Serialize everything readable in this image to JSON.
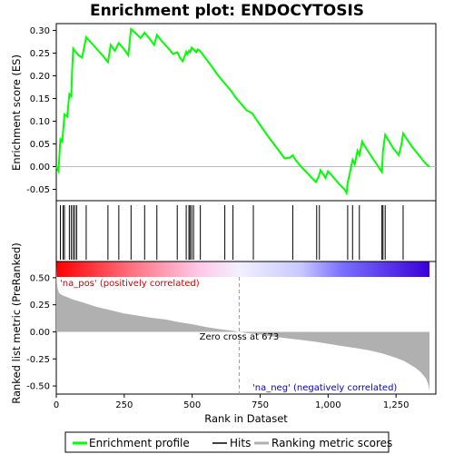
{
  "chart_data": [
    {
      "type": "line",
      "title": "Enrichment plot: ENDOCYTOSIS",
      "ylabel": "Enrichment score (ES)",
      "xlim": [
        0,
        1400
      ],
      "ylim": [
        -0.075,
        0.315
      ],
      "yticks": [
        "0.30",
        "0.25",
        "0.20",
        "0.15",
        "0.10",
        "0.05",
        "0.00",
        "-0.05"
      ],
      "ytick_values": [
        0.3,
        0.25,
        0.2,
        0.15,
        0.1,
        0.05,
        0.0,
        -0.05
      ],
      "color": "#00ff00",
      "series": [
        {
          "name": "Enrichment profile",
          "x": [
            0,
            8,
            15,
            22,
            30,
            40,
            48,
            55,
            58,
            62,
            68,
            75,
            82,
            95,
            110,
            125,
            140,
            155,
            170,
            190,
            200,
            215,
            230,
            250,
            265,
            275,
            290,
            310,
            325,
            345,
            360,
            370,
            390,
            410,
            430,
            445,
            455,
            465,
            478,
            482,
            488,
            492,
            498,
            505,
            515,
            520,
            530,
            545,
            560,
            575,
            590,
            610,
            630,
            645,
            660,
            680,
            700,
            720,
            740,
            760,
            780,
            800,
            820,
            840,
            860,
            870,
            880,
            900,
            920,
            940,
            955,
            965,
            972,
            980,
            990,
            1000,
            1020,
            1040,
            1060,
            1068,
            1072,
            1078,
            1085,
            1090,
            1098,
            1108,
            1115,
            1125,
            1140,
            1160,
            1180,
            1198,
            1202,
            1210,
            1225,
            1240,
            1260,
            1270,
            1276,
            1290,
            1310,
            1330,
            1350,
            1365,
            1373
          ],
          "y": [
            0.0,
            -0.01,
            0.06,
            0.055,
            0.115,
            0.11,
            0.16,
            0.155,
            0.21,
            0.26,
            0.255,
            0.25,
            0.245,
            0.24,
            0.285,
            0.275,
            0.265,
            0.255,
            0.245,
            0.23,
            0.268,
            0.255,
            0.272,
            0.258,
            0.245,
            0.303,
            0.295,
            0.283,
            0.295,
            0.28,
            0.268,
            0.29,
            0.275,
            0.262,
            0.248,
            0.252,
            0.24,
            0.232,
            0.253,
            0.248,
            0.255,
            0.252,
            0.262,
            0.258,
            0.252,
            0.258,
            0.254,
            0.242,
            0.23,
            0.218,
            0.205,
            0.19,
            0.176,
            0.165,
            0.152,
            0.138,
            0.124,
            0.118,
            0.1,
            0.083,
            0.066,
            0.05,
            0.034,
            0.018,
            0.02,
            0.025,
            0.015,
            0.0,
            -0.012,
            -0.025,
            -0.034,
            -0.022,
            -0.008,
            -0.015,
            -0.025,
            -0.01,
            -0.024,
            -0.038,
            -0.05,
            -0.058,
            -0.035,
            -0.02,
            0.0,
            0.015,
            0.005,
            0.035,
            0.025,
            0.055,
            0.04,
            0.022,
            0.004,
            -0.012,
            0.035,
            0.07,
            0.055,
            0.04,
            0.025,
            0.05,
            0.073,
            0.06,
            0.043,
            0.028,
            0.013,
            0.003,
            0.0
          ]
        }
      ]
    },
    {
      "type": "hits",
      "name": "Hits",
      "x": [
        15,
        25,
        30,
        48,
        55,
        62,
        68,
        75,
        110,
        190,
        230,
        275,
        325,
        370,
        445,
        478,
        488,
        492,
        498,
        505,
        530,
        620,
        650,
        725,
        870,
        958,
        968,
        1072,
        1090,
        1115,
        1198,
        1202,
        1210,
        1276
      ],
      "color": "#000000"
    },
    {
      "type": "heatmap",
      "name": "rank colorbar",
      "stops": [
        {
          "x": 0,
          "color": "#ff0000"
        },
        {
          "x": 300,
          "color": "#ff7a8a"
        },
        {
          "x": 520,
          "color": "#ffc6e8"
        },
        {
          "x": 673,
          "color": "#f2f0ff"
        },
        {
          "x": 900,
          "color": "#c8c8ff"
        },
        {
          "x": 1050,
          "color": "#7a70ff"
        },
        {
          "x": 1373,
          "color": "#3a00d8"
        }
      ]
    },
    {
      "type": "area",
      "ylabel": "Ranked list metric (PreRanked)",
      "xlabel": "Rank in Dataset",
      "ylim": [
        -0.575,
        0.65
      ],
      "yticks": [
        "0.50",
        "0.25",
        "0.00",
        "-0.25",
        "-0.50"
      ],
      "ytick_values": [
        0.5,
        0.25,
        0.0,
        -0.25,
        -0.5
      ],
      "xticks": [
        "0",
        "250",
        "500",
        "750",
        "1,000",
        "1,250"
      ],
      "xtick_values": [
        0,
        250,
        500,
        750,
        1000,
        1250
      ],
      "color": "#b0b0b0",
      "series": [
        {
          "name": "Ranking metric scores",
          "x": [
            0,
            2,
            5,
            10,
            20,
            40,
            60,
            100,
            150,
            200,
            250,
            300,
            350,
            400,
            450,
            500,
            550,
            600,
            650,
            673,
            700,
            750,
            800,
            850,
            900,
            950,
            1000,
            1050,
            1100,
            1150,
            1200,
            1250,
            1280,
            1300,
            1320,
            1340,
            1350,
            1360,
            1365,
            1370,
            1373
          ],
          "y": [
            0.62,
            0.47,
            0.4,
            0.36,
            0.34,
            0.32,
            0.3,
            0.27,
            0.23,
            0.2,
            0.17,
            0.15,
            0.13,
            0.115,
            0.09,
            0.07,
            0.045,
            0.025,
            0.01,
            0.0,
            -0.01,
            -0.025,
            -0.045,
            -0.06,
            -0.075,
            -0.09,
            -0.11,
            -0.13,
            -0.15,
            -0.17,
            -0.2,
            -0.24,
            -0.27,
            -0.3,
            -0.33,
            -0.37,
            -0.4,
            -0.43,
            -0.46,
            -0.5,
            -0.55
          ]
        }
      ],
      "zero_cross": {
        "x": 673,
        "label": "Zero cross at 673"
      },
      "annotations": {
        "pos_label": "'na_pos' (positively correlated)",
        "neg_label": "'na_neg' (negatively correlated)"
      }
    }
  ],
  "legend": [
    {
      "label": "Enrichment profile"
    },
    {
      "label": "Hits"
    },
    {
      "label": "Ranking metric scores"
    }
  ],
  "colors": {
    "profile": "#00ff00",
    "hits": "#000000",
    "metric": "#b0b0b0",
    "pos_label": "#cc0000",
    "neg_label": "#0000cc"
  }
}
